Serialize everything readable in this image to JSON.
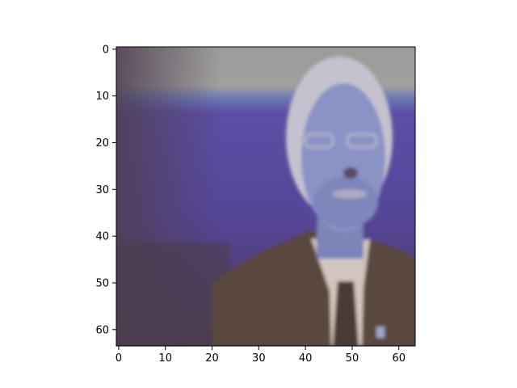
{
  "chart_data": {
    "type": "heatmap",
    "title": "",
    "xlabel": "",
    "ylabel": "",
    "image_size": [
      64,
      64
    ],
    "xlim": [
      -0.5,
      63.5
    ],
    "ylim": [
      63.5,
      -0.5
    ],
    "xticks": [
      0,
      10,
      20,
      30,
      40,
      50,
      60
    ],
    "yticks": [
      0,
      10,
      20,
      30,
      40,
      50,
      60
    ],
    "xtick_labels": [
      "0",
      "10",
      "20",
      "30",
      "40",
      "50",
      "60"
    ],
    "ytick_labels": [
      "0",
      "10",
      "20",
      "30",
      "40",
      "50",
      "60"
    ],
    "grid": false,
    "legend": "none",
    "content": "low-resolution color image of a white-haired man in a brown suit jacket, white shirt and dark tie in front of a purple backdrop with a grey band at the top"
  },
  "colors": {
    "top_band": "#9a9a98",
    "blue_stripe": "#6a7ab8",
    "backdrop": "#5a4aa0",
    "backdrop_shadow": "#4a3e6c",
    "lower_left": "#4e3e50",
    "hair": "#c6c4d0",
    "face": "#8c94c8",
    "face_shadow": "#7078a8",
    "jacket": "#5a463c",
    "shirt": "#d4c8c0",
    "tie": "#4a3a34",
    "pin": "#9aa8c8"
  }
}
